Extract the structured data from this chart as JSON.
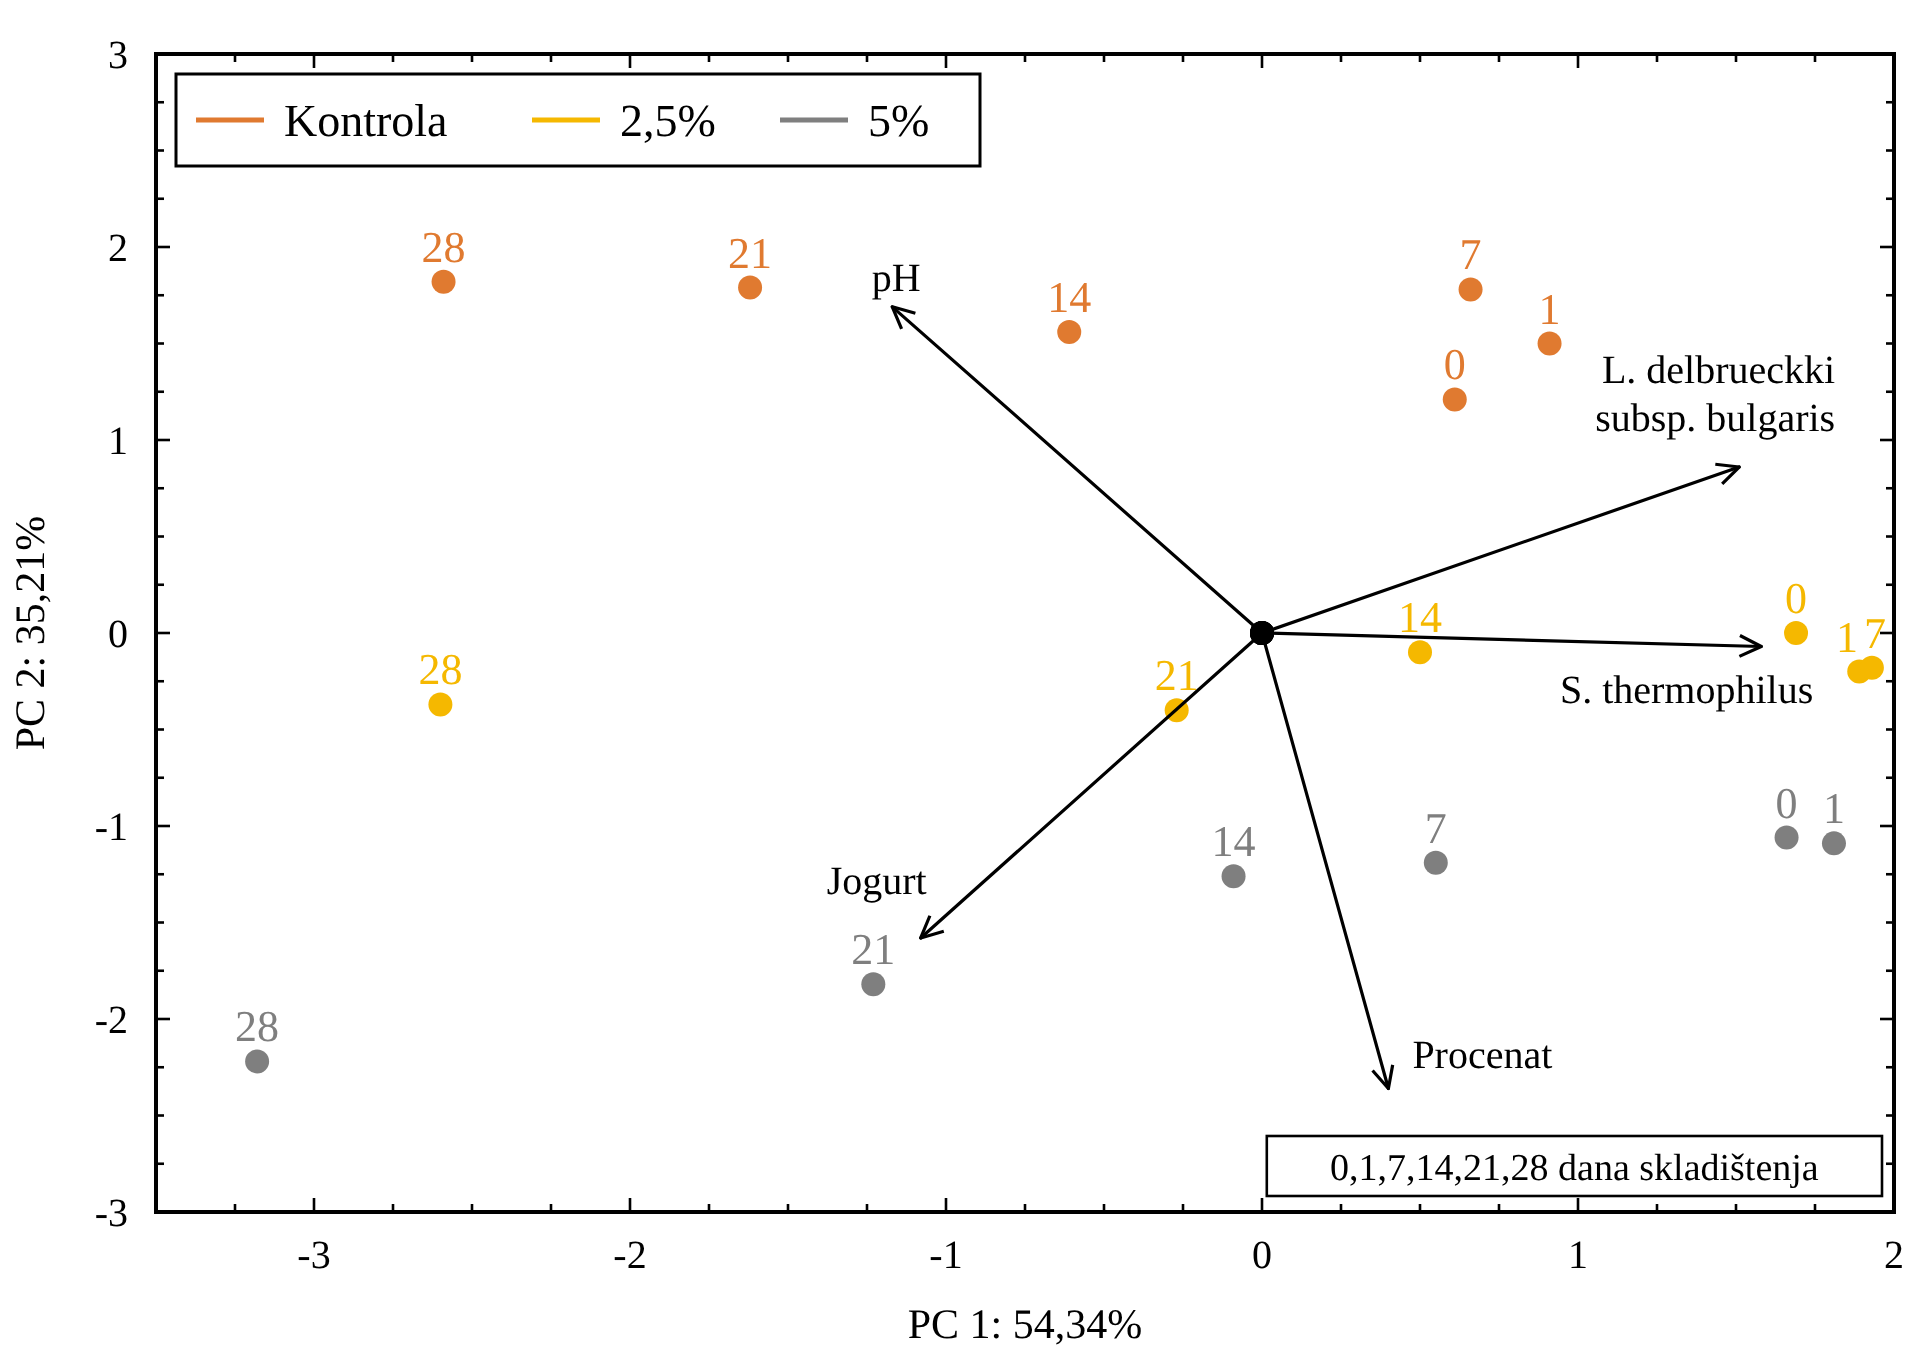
{
  "chart_data": {
    "type": "scatter",
    "xlabel": "PC 1: 54,34%",
    "ylabel": "PC 2: 35,21%",
    "xlim": [
      -3.5,
      2
    ],
    "ylim": [
      -3,
      3
    ],
    "xticks": [
      {
        "value": -3.5,
        "label": null
      },
      {
        "value": -3.25,
        "label": null
      },
      -3,
      {
        "value": -2.75,
        "label": null
      },
      {
        "value": -2.5,
        "label": null
      },
      {
        "value": -2.25,
        "label": null
      },
      -2,
      {
        "value": -1.75,
        "label": null
      },
      {
        "value": -1.5,
        "label": null
      },
      {
        "value": -1.25,
        "label": null
      },
      -1,
      {
        "value": -0.75,
        "label": null
      },
      {
        "value": -0.5,
        "label": null
      },
      {
        "value": -0.25,
        "label": null
      },
      0,
      {
        "value": 0.25,
        "label": null
      },
      {
        "value": 0.5,
        "label": null
      },
      {
        "value": 0.75,
        "label": null
      },
      1,
      {
        "value": 1.25,
        "label": null
      },
      {
        "value": 1.5,
        "label": null
      },
      {
        "value": 1.75,
        "label": null
      },
      2
    ],
    "yticks": [
      -3,
      {
        "value": -2.75,
        "label": null
      },
      {
        "value": -2.5,
        "label": null
      },
      {
        "value": -2.25,
        "label": null
      },
      -2,
      {
        "value": -1.75,
        "label": null
      },
      {
        "value": -1.5,
        "label": null
      },
      {
        "value": -1.25,
        "label": null
      },
      -1,
      {
        "value": -0.75,
        "label": null
      },
      {
        "value": -0.5,
        "label": null
      },
      {
        "value": -0.25,
        "label": null
      },
      0,
      {
        "value": 0.25,
        "label": null
      },
      {
        "value": 0.5,
        "label": null
      },
      {
        "value": 0.75,
        "label": null
      },
      1,
      {
        "value": 1.25,
        "label": null
      },
      {
        "value": 1.5,
        "label": null
      },
      {
        "value": 1.75,
        "label": null
      },
      2,
      {
        "value": 2.25,
        "label": null
      },
      {
        "value": 2.5,
        "label": null
      },
      {
        "value": 2.75,
        "label": null
      },
      3
    ],
    "grid": false,
    "legend": "top left",
    "marker": "circle",
    "series": [
      {
        "name": "Kontrola",
        "color": "#e07a30",
        "x": [
          0.61,
          0.91,
          0.66,
          -0.61,
          -1.62,
          -2.59
        ],
        "values": [
          1.21,
          1.5,
          1.78,
          1.56,
          1.79,
          1.82
        ]
      },
      {
        "name": "2,5%",
        "color": "#f5b800",
        "x": [
          1.69,
          1.89,
          1.93,
          0.5,
          -0.27,
          -2.6
        ],
        "values": [
          0.0,
          -0.2,
          -0.18,
          -0.1,
          -0.4,
          -0.37
        ]
      },
      {
        "name": "5%",
        "color": "#7f7f7f",
        "x": [
          1.66,
          1.81,
          0.55,
          -0.09,
          -1.23,
          -3.18
        ],
        "values": [
          -1.06,
          -1.09,
          -1.19,
          -1.26,
          -1.82,
          -2.22
        ]
      },
      {
        "type": "line",
        "name": "pH",
        "color": "#000000",
        "marker": "circle",
        "x": [
          0,
          -1.17
        ],
        "values": [
          0,
          1.69
        ]
      },
      {
        "type": "line",
        "name": "L. delbrueckki subsp. bulgaris",
        "color": "#000000",
        "marker": "circle",
        "x": [
          0,
          1.51
        ],
        "values": [
          0,
          0.86
        ]
      },
      {
        "type": "line",
        "name": "S. thermophilus",
        "color": "#000000",
        "marker": "circle",
        "x": [
          0,
          1.58
        ],
        "values": [
          0,
          -0.07
        ]
      },
      {
        "type": "line",
        "name": "Jogurt",
        "color": "#000000",
        "marker": "circle",
        "x": [
          0,
          -1.08
        ],
        "values": [
          0,
          -1.58
        ]
      },
      {
        "type": "line",
        "name": "Procenat",
        "color": "#000000",
        "marker": "circle",
        "x": [
          0,
          0.4
        ],
        "values": [
          0,
          -2.36
        ]
      }
    ],
    "annotations": [
      {
        "text": "0",
        "x": 0.61,
        "y": 1.21
      },
      {
        "text": "1",
        "x": 0.91,
        "y": 1.5
      },
      {
        "text": "7",
        "x": 0.66,
        "y": 1.78
      },
      {
        "text": "14",
        "x": -0.61,
        "y": 1.56
      },
      {
        "text": "21",
        "x": -1.62,
        "y": 1.79
      },
      {
        "text": "28",
        "x": -2.59,
        "y": 1.82
      },
      {
        "text": "0",
        "x": 1.69,
        "y": 0.0
      },
      {
        "text": "1",
        "x": 1.89,
        "y": -0.2
      },
      {
        "text": "7",
        "x": 1.93,
        "y": -0.18
      },
      {
        "text": "14",
        "x": 0.5,
        "y": -0.1
      },
      {
        "text": "21",
        "x": -0.27,
        "y": -0.4
      },
      {
        "text": "28",
        "x": -2.6,
        "y": -0.37
      },
      {
        "text": "0",
        "x": 1.66,
        "y": -1.06
      },
      {
        "text": "1",
        "x": 1.81,
        "y": -1.09
      },
      {
        "text": "7",
        "x": 0.55,
        "y": -1.19
      },
      {
        "text": "14",
        "x": -0.09,
        "y": -1.26
      },
      {
        "text": "21",
        "x": -1.23,
        "y": -1.82
      },
      {
        "text": "28",
        "x": -3.18,
        "y": -2.22
      },
      "0,1,7,14,21,28 dana skladištenja"
    ]
  }
}
